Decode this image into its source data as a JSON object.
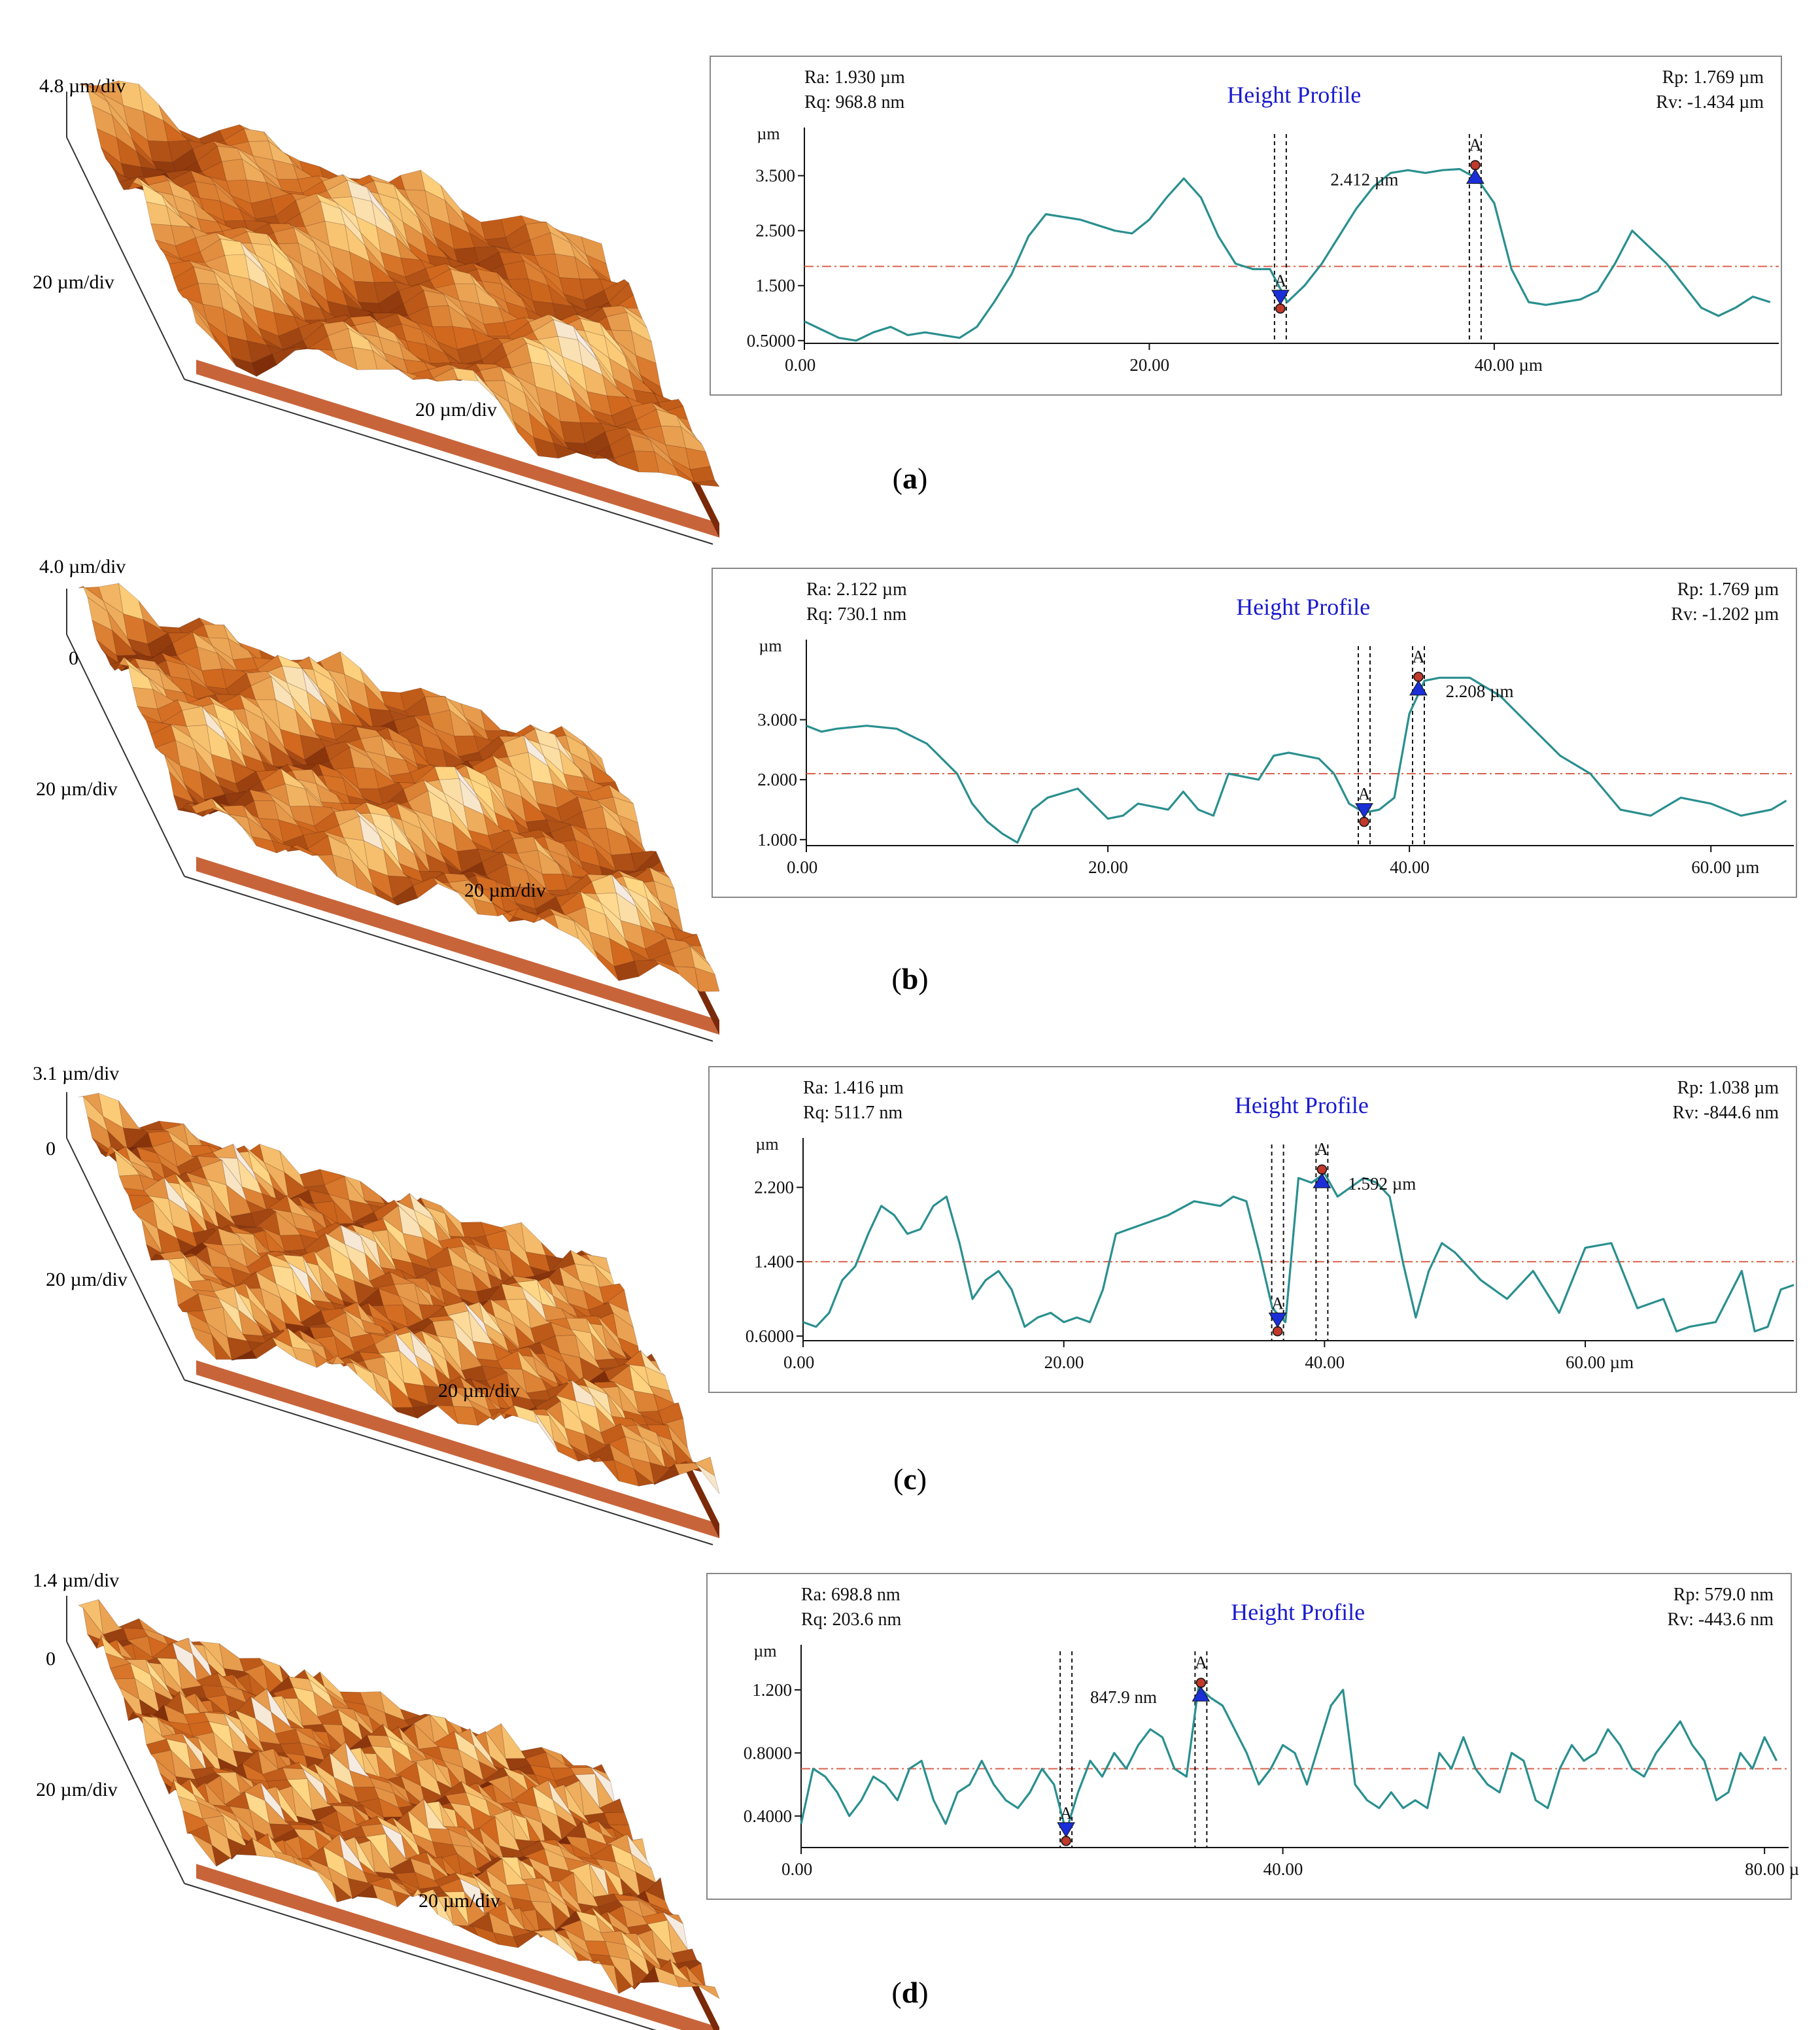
{
  "colors": {
    "profile_line": "#2a8f8f",
    "mean_line": "#d9604e",
    "title": "#1a1acc",
    "marker_blue": "#1a2fd6",
    "marker_red": "#c0392b",
    "surface_dark": "#7a2a08",
    "surface_mid": "#d2691e",
    "surface_light": "#ffd27a",
    "surface_base": "#c8643a"
  },
  "panels": [
    {
      "caption_open": "(",
      "caption_letter": "a",
      "caption_close": ")",
      "afm": {
        "z_scale": "4.8 µm/div",
        "z_zero": "",
        "y_scale": "20 µm/div",
        "x_scale": "20 µm/div",
        "roughness": 1.0
      },
      "chart_data": {
        "type": "line",
        "title": "Height Profile",
        "stats": {
          "ra": "Ra: 1.930 µm",
          "rq": "Rq: 968.8 nm",
          "rp": "Rp: 1.769 µm",
          "rv": "Rv: -1.434 µm"
        },
        "ylabel": "µm",
        "xlim": [
          0,
          56.5
        ],
        "ylim": [
          0.45,
          3.9
        ],
        "yticks": [
          0.5,
          1.5,
          2.5,
          3.5
        ],
        "ytick_labels": [
          "0.5000",
          "1.500",
          "2.500",
          "3.500"
        ],
        "xticks": [
          0,
          20,
          40
        ],
        "xtick_labels": [
          "0.00",
          "20.00",
          "40.00 µm"
        ],
        "mean": 1.85,
        "cursor_low": {
          "x": 27.6,
          "y": 1.25,
          "label": "A"
        },
        "cursor_high": {
          "x": 38.9,
          "y": 3.62,
          "label": "A"
        },
        "measurement": "2.412 µm",
        "measurement_x": 30.5,
        "x": [
          0,
          1,
          2,
          3,
          4,
          5,
          6,
          7,
          8,
          9,
          10,
          11,
          12,
          13,
          14,
          15,
          16,
          17,
          18,
          19,
          20,
          21,
          22,
          23,
          24,
          25,
          26,
          27,
          28,
          29,
          30,
          31,
          32,
          33,
          34,
          35,
          36,
          37,
          38,
          39,
          40,
          41,
          42,
          43,
          44,
          45,
          46,
          47,
          48,
          49,
          50,
          51,
          52,
          53,
          54,
          55,
          56
        ],
        "y": [
          0.85,
          0.7,
          0.55,
          0.5,
          0.65,
          0.75,
          0.6,
          0.65,
          0.6,
          0.55,
          0.75,
          1.2,
          1.7,
          2.4,
          2.8,
          2.75,
          2.7,
          2.6,
          2.5,
          2.45,
          2.7,
          3.1,
          3.45,
          3.1,
          2.4,
          1.9,
          1.8,
          1.8,
          1.2,
          1.5,
          1.9,
          2.4,
          2.9,
          3.3,
          3.55,
          3.6,
          3.55,
          3.6,
          3.62,
          3.45,
          3.0,
          1.8,
          1.2,
          1.15,
          1.2,
          1.25,
          1.4,
          1.9,
          2.5,
          2.2,
          1.9,
          1.5,
          1.1,
          0.95,
          1.1,
          1.3,
          1.2
        ]
      }
    },
    {
      "caption_open": "(",
      "caption_letter": "b",
      "caption_close": ")",
      "afm": {
        "z_scale": "4.0 µm/div",
        "z_zero": "0",
        "y_scale": "20 µm/div",
        "x_scale": "20 µm/div",
        "roughness": 1.3
      },
      "chart_data": {
        "type": "line",
        "title": "Height Profile",
        "stats": {
          "ra": "Ra: 2.122 µm",
          "rq": "Rq: 730.1 nm",
          "rp": "Rp: 1.769 µm",
          "rv": "Rv: -1.202 µm"
        },
        "ylabel": "µm",
        "xlim": [
          0,
          65.5
        ],
        "ylim": [
          0.9,
          3.9
        ],
        "yticks": [
          1.0,
          2.0,
          3.0
        ],
        "ytick_labels": [
          "1.000",
          "2.000",
          "3.000"
        ],
        "xticks": [
          0,
          20,
          40,
          60
        ],
        "xtick_labels": [
          "0.00",
          "20.00",
          "40.00",
          "60.00 µm"
        ],
        "mean": 2.1,
        "cursor_low": {
          "x": 37.0,
          "y": 1.45,
          "label": "A"
        },
        "cursor_high": {
          "x": 40.6,
          "y": 3.65,
          "label": "A"
        },
        "measurement": "2.208 µm",
        "measurement_x": 42.4,
        "x": [
          0,
          1,
          2,
          4,
          6,
          8,
          10,
          11,
          12,
          13,
          14,
          15,
          16,
          18,
          19,
          20,
          21,
          22,
          24,
          25,
          26,
          27,
          28,
          30,
          31,
          32,
          34,
          35,
          36,
          37,
          38,
          39,
          40,
          41,
          42,
          44,
          46,
          48,
          50,
          52,
          54,
          56,
          58,
          60,
          62,
          64,
          65
        ],
        "y": [
          2.9,
          2.8,
          2.85,
          2.9,
          2.85,
          2.6,
          2.1,
          1.6,
          1.3,
          1.1,
          0.95,
          1.5,
          1.7,
          1.85,
          1.6,
          1.35,
          1.4,
          1.6,
          1.5,
          1.8,
          1.5,
          1.4,
          2.1,
          2.0,
          2.4,
          2.45,
          2.35,
          2.1,
          1.6,
          1.45,
          1.5,
          1.7,
          3.1,
          3.65,
          3.7,
          3.7,
          3.4,
          2.9,
          2.4,
          2.1,
          1.5,
          1.4,
          1.7,
          1.6,
          1.4,
          1.5,
          1.65
        ]
      }
    },
    {
      "caption_open": "(",
      "caption_letter": "c",
      "caption_close": ")",
      "afm": {
        "z_scale": "3.1 µm/div",
        "z_zero": "0",
        "y_scale": "20 µm/div",
        "x_scale": "20 µm/div",
        "roughness": 1.8
      },
      "chart_data": {
        "type": "line",
        "title": "Height Profile",
        "stats": {
          "ra": "Ra: 1.416 µm",
          "rq": "Rq: 511.7 nm",
          "rp": "Rp: 1.038 µm",
          "rv": "Rv: -844.6 nm"
        },
        "ylabel": "µm",
        "xlim": [
          0,
          76
        ],
        "ylim": [
          0.55,
          2.45
        ],
        "yticks": [
          0.6,
          1.4,
          2.2
        ],
        "ytick_labels": [
          "0.6000",
          "1.400",
          "2.200"
        ],
        "xticks": [
          0,
          20,
          40,
          60
        ],
        "xtick_labels": [
          "0.00",
          "20.00",
          "40.00",
          "60.00 µm"
        ],
        "mean": 1.4,
        "cursor_low": {
          "x": 36.4,
          "y": 0.75,
          "label": "A"
        },
        "cursor_high": {
          "x": 39.8,
          "y": 2.35,
          "label": "A"
        },
        "measurement": "1.592 µm",
        "measurement_x": 41.8,
        "x": [
          0,
          1,
          2,
          3,
          4,
          5,
          6,
          7,
          8,
          9,
          10,
          11,
          12,
          13,
          14,
          15,
          16,
          17,
          18,
          19,
          20,
          21,
          22,
          23,
          24,
          26,
          28,
          30,
          32,
          33,
          34,
          35,
          36,
          37,
          38,
          39,
          40,
          41,
          42,
          43,
          44,
          45,
          46,
          47,
          48,
          49,
          50,
          52,
          54,
          56,
          58,
          60,
          62,
          64,
          66,
          67,
          68,
          70,
          72,
          73,
          74,
          75,
          76
        ],
        "y": [
          0.75,
          0.7,
          0.85,
          1.2,
          1.35,
          1.7,
          2.0,
          1.9,
          1.7,
          1.75,
          2.0,
          2.1,
          1.6,
          1.0,
          1.2,
          1.3,
          1.1,
          0.7,
          0.8,
          0.85,
          0.75,
          0.8,
          0.75,
          1.1,
          1.7,
          1.8,
          1.9,
          2.05,
          2.0,
          2.1,
          2.05,
          1.5,
          0.9,
          0.75,
          2.3,
          2.25,
          2.35,
          2.1,
          2.2,
          2.3,
          2.25,
          2.1,
          1.4,
          0.8,
          1.3,
          1.6,
          1.5,
          1.2,
          1.0,
          1.3,
          0.85,
          1.55,
          1.6,
          0.9,
          1.0,
          0.65,
          0.7,
          0.75,
          1.3,
          0.65,
          0.7,
          1.1,
          1.15
        ]
      }
    },
    {
      "caption_open": "(",
      "caption_letter": "d",
      "caption_close": ")",
      "afm": {
        "z_scale": "1.4 µm/div",
        "z_zero": "0",
        "y_scale": "20 µm/div",
        "x_scale": "20 µm/div",
        "roughness": 2.6
      },
      "chart_data": {
        "type": "line",
        "title": "Height Profile",
        "stats": {
          "ra": "Ra: 698.8 nm",
          "rq": "Rq: 203.6 nm",
          "rp": "Rp: 579.0 nm",
          "rv": "Rv: -443.6 nm"
        },
        "ylabel": "µm",
        "xlim": [
          0,
          82
        ],
        "ylim": [
          0.2,
          1.32
        ],
        "yticks": [
          0.4,
          0.8,
          1.2
        ],
        "ytick_labels": [
          "0.4000",
          "0.8000",
          "1.200"
        ],
        "xticks": [
          0,
          40,
          80
        ],
        "xtick_labels": [
          "0.00",
          "40.00",
          "80.00 µ"
        ],
        "mean": 0.7,
        "cursor_low": {
          "x": 22.0,
          "y": 0.3,
          "label": "A"
        },
        "cursor_high": {
          "x": 33.2,
          "y": 1.22,
          "label": "A"
        },
        "measurement": "847.9 nm",
        "measurement_x": 24.0,
        "x": [
          0,
          1,
          2,
          3,
          4,
          5,
          6,
          7,
          8,
          9,
          10,
          11,
          12,
          13,
          14,
          15,
          16,
          17,
          18,
          19,
          20,
          21,
          22,
          23,
          24,
          25,
          26,
          27,
          28,
          29,
          30,
          31,
          32,
          33,
          34,
          35,
          36,
          37,
          38,
          39,
          40,
          41,
          42,
          43,
          44,
          45,
          46,
          47,
          48,
          49,
          50,
          51,
          52,
          53,
          54,
          55,
          56,
          57,
          58,
          59,
          60,
          61,
          62,
          63,
          64,
          65,
          66,
          67,
          68,
          69,
          70,
          71,
          72,
          73,
          74,
          75,
          76,
          77,
          78,
          79,
          80,
          81
        ],
        "y": [
          0.35,
          0.7,
          0.65,
          0.55,
          0.4,
          0.5,
          0.65,
          0.6,
          0.5,
          0.7,
          0.75,
          0.5,
          0.35,
          0.55,
          0.6,
          0.75,
          0.6,
          0.5,
          0.45,
          0.55,
          0.7,
          0.6,
          0.3,
          0.55,
          0.75,
          0.65,
          0.8,
          0.7,
          0.85,
          0.95,
          0.9,
          0.7,
          0.65,
          1.22,
          1.15,
          1.1,
          0.95,
          0.8,
          0.6,
          0.7,
          0.85,
          0.8,
          0.6,
          0.85,
          1.1,
          1.2,
          0.6,
          0.5,
          0.45,
          0.55,
          0.45,
          0.5,
          0.45,
          0.8,
          0.7,
          0.9,
          0.7,
          0.6,
          0.55,
          0.8,
          0.75,
          0.5,
          0.45,
          0.7,
          0.85,
          0.75,
          0.8,
          0.95,
          0.85,
          0.7,
          0.65,
          0.8,
          0.9,
          1.0,
          0.85,
          0.75,
          0.5,
          0.55,
          0.8,
          0.7,
          0.9,
          0.75
        ]
      }
    }
  ]
}
